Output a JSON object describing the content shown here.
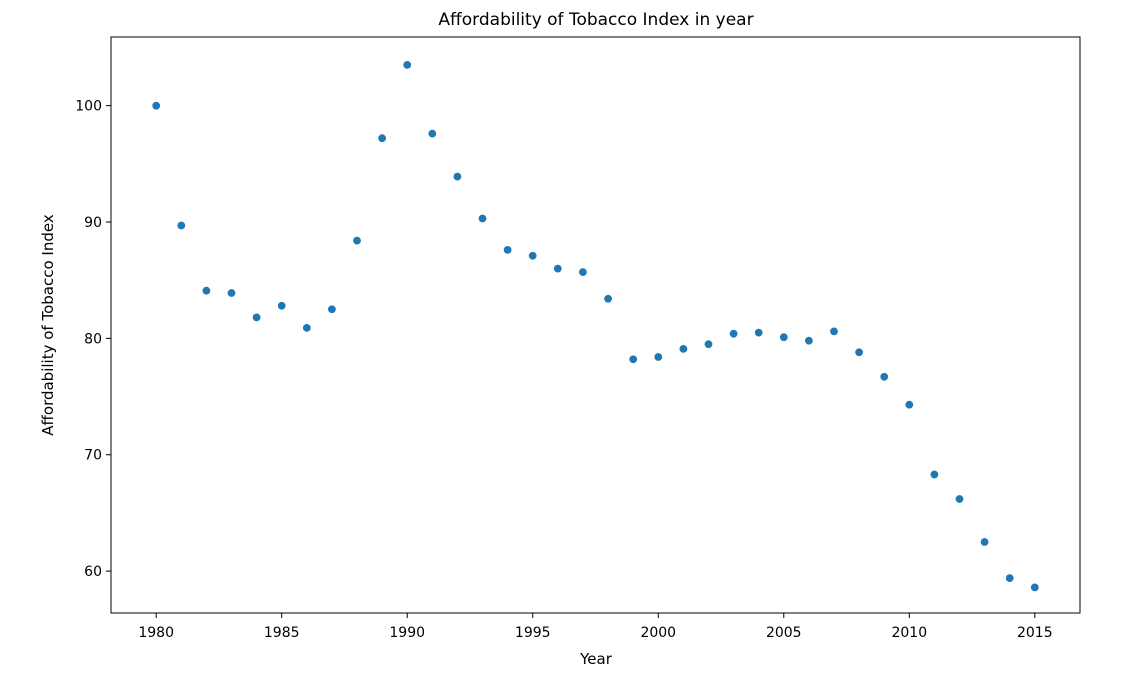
{
  "chart_data": {
    "type": "scatter",
    "title": "Affordability of Tobacco Index in year",
    "xlabel": "Year",
    "ylabel": "Affordability of Tobacco Index",
    "xlim": [
      1978.2,
      2016.8
    ],
    "ylim": [
      56.4,
      105.9
    ],
    "xticks": [
      1980,
      1985,
      1990,
      1995,
      2000,
      2005,
      2010,
      2015
    ],
    "yticks": [
      60,
      70,
      80,
      90,
      100
    ],
    "grid": false,
    "colors": {
      "point": "#1f77b4",
      "axes": "#000000",
      "background": "#ffffff"
    },
    "points": [
      {
        "x": 1980,
        "y": 100.0
      },
      {
        "x": 1981,
        "y": 89.7
      },
      {
        "x": 1982,
        "y": 84.1
      },
      {
        "x": 1983,
        "y": 83.9
      },
      {
        "x": 1984,
        "y": 81.8
      },
      {
        "x": 1985,
        "y": 82.8
      },
      {
        "x": 1986,
        "y": 80.9
      },
      {
        "x": 1987,
        "y": 82.5
      },
      {
        "x": 1988,
        "y": 88.4
      },
      {
        "x": 1989,
        "y": 97.2
      },
      {
        "x": 1990,
        "y": 103.5
      },
      {
        "x": 1991,
        "y": 97.6
      },
      {
        "x": 1992,
        "y": 93.9
      },
      {
        "x": 1993,
        "y": 90.3
      },
      {
        "x": 1994,
        "y": 87.6
      },
      {
        "x": 1995,
        "y": 87.1
      },
      {
        "x": 1996,
        "y": 86.0
      },
      {
        "x": 1997,
        "y": 85.7
      },
      {
        "x": 1998,
        "y": 83.4
      },
      {
        "x": 1999,
        "y": 78.2
      },
      {
        "x": 2000,
        "y": 78.4
      },
      {
        "x": 2001,
        "y": 79.1
      },
      {
        "x": 2002,
        "y": 79.5
      },
      {
        "x": 2003,
        "y": 80.4
      },
      {
        "x": 2004,
        "y": 80.5
      },
      {
        "x": 2005,
        "y": 80.1
      },
      {
        "x": 2006,
        "y": 79.8
      },
      {
        "x": 2007,
        "y": 80.6
      },
      {
        "x": 2008,
        "y": 78.8
      },
      {
        "x": 2009,
        "y": 76.7
      },
      {
        "x": 2010,
        "y": 74.3
      },
      {
        "x": 2011,
        "y": 68.3
      },
      {
        "x": 2012,
        "y": 66.2
      },
      {
        "x": 2013,
        "y": 62.5
      },
      {
        "x": 2014,
        "y": 59.4
      },
      {
        "x": 2015,
        "y": 58.6
      }
    ]
  }
}
